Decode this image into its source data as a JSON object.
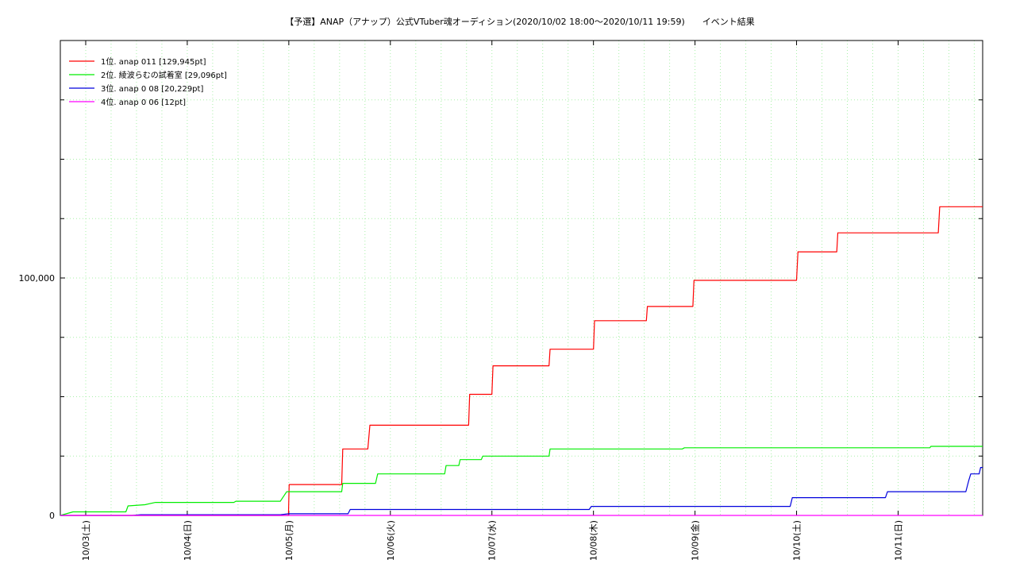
{
  "chart_data": {
    "type": "line",
    "title": "【予選】ANAP（アナップ）公式VTuber魂オーディション(2020/10/02 18:00〜2020/10/11 19:59)　　イベント結果",
    "xlabel": "",
    "ylabel": "",
    "ylim": [
      0,
      200000
    ],
    "xlim": [
      "2020-10-02 18:00",
      "2020-10-11 19:59"
    ],
    "grid": true,
    "legend_position": "top-left",
    "y_tick_labels": [
      {
        "value": 0,
        "label": "0"
      },
      {
        "value": 100000,
        "label": "100,000"
      }
    ],
    "x_tick_labels": [
      {
        "value": "2020-10-03 00:00",
        "label": "10/03(土)"
      },
      {
        "value": "2020-10-04 00:00",
        "label": "10/04(日)"
      },
      {
        "value": "2020-10-05 00:00",
        "label": "10/05(月)"
      },
      {
        "value": "2020-10-06 00:00",
        "label": "10/06(火)"
      },
      {
        "value": "2020-10-07 00:00",
        "label": "10/07(水)"
      },
      {
        "value": "2020-10-08 00:00",
        "label": "10/08(木)"
      },
      {
        "value": "2020-10-09 00:00",
        "label": "10/09(金)"
      },
      {
        "value": "2020-10-10 00:00",
        "label": "10/10(土)"
      },
      {
        "value": "2020-10-11 00:00",
        "label": "10/11(日)"
      }
    ],
    "series": [
      {
        "name": "1位. anap 011 [129,945pt]",
        "color": "#ff0000",
        "points": [
          [
            "2020-10-02 18:00",
            0
          ],
          [
            "2020-10-04 23:55",
            0
          ],
          [
            "2020-10-05 00:05",
            13000
          ],
          [
            "2020-10-05 12:30",
            13000
          ],
          [
            "2020-10-05 12:45",
            28000
          ],
          [
            "2020-10-05 18:40",
            28000
          ],
          [
            "2020-10-05 19:10",
            38000
          ],
          [
            "2020-10-06 18:30",
            38000
          ],
          [
            "2020-10-06 18:45",
            51000
          ],
          [
            "2020-10-07 00:00",
            51000
          ],
          [
            "2020-10-07 00:15",
            63000
          ],
          [
            "2020-10-07 13:30",
            63000
          ],
          [
            "2020-10-07 13:45",
            70000
          ],
          [
            "2020-10-08 00:00",
            70000
          ],
          [
            "2020-10-08 00:15",
            82000
          ],
          [
            "2020-10-08 12:30",
            82000
          ],
          [
            "2020-10-08 12:45",
            88000
          ],
          [
            "2020-10-08 23:30",
            88000
          ],
          [
            "2020-10-08 23:45",
            99000
          ],
          [
            "2020-10-10 00:00",
            99000
          ],
          [
            "2020-10-10 00:20",
            111000
          ],
          [
            "2020-10-10 09:30",
            111000
          ],
          [
            "2020-10-10 09:45",
            119000
          ],
          [
            "2020-10-11 09:30",
            119000
          ],
          [
            "2020-10-11 09:50",
            130000
          ],
          [
            "2020-10-11 19:59",
            130000
          ]
        ]
      },
      {
        "name": "2位. 綾波らむの試着室 [29,096pt]",
        "color": "#00ee00",
        "points": [
          [
            "2020-10-02 18:00",
            0
          ],
          [
            "2020-10-02 20:00",
            1000
          ],
          [
            "2020-10-02 21:00",
            1500
          ],
          [
            "2020-10-03 09:30",
            1500
          ],
          [
            "2020-10-03 10:00",
            4000
          ],
          [
            "2020-10-03 14:00",
            4500
          ],
          [
            "2020-10-03 16:30",
            5500
          ],
          [
            "2020-10-04 11:00",
            5500
          ],
          [
            "2020-10-04 11:30",
            6000
          ],
          [
            "2020-10-04 22:00",
            6000
          ],
          [
            "2020-10-04 23:30",
            10000
          ],
          [
            "2020-10-05 12:30",
            10000
          ],
          [
            "2020-10-05 12:45",
            13500
          ],
          [
            "2020-10-05 20:30",
            13500
          ],
          [
            "2020-10-05 21:00",
            17500
          ],
          [
            "2020-10-06 12:50",
            17500
          ],
          [
            "2020-10-06 13:10",
            21000
          ],
          [
            "2020-10-06 16:10",
            21000
          ],
          [
            "2020-10-06 16:30",
            23500
          ],
          [
            "2020-10-06 21:30",
            23500
          ],
          [
            "2020-10-06 21:50",
            25000
          ],
          [
            "2020-10-07 13:30",
            25000
          ],
          [
            "2020-10-07 13:45",
            28000
          ],
          [
            "2020-10-08 21:00",
            28000
          ],
          [
            "2020-10-08 21:30",
            28500
          ],
          [
            "2020-10-11 07:30",
            28500
          ],
          [
            "2020-10-11 07:45",
            29100
          ],
          [
            "2020-10-11 19:59",
            29100
          ]
        ]
      },
      {
        "name": "3位. anap 0 08 [20,229pt]",
        "color": "#0000dd",
        "points": [
          [
            "2020-10-02 18:00",
            0
          ],
          [
            "2020-10-03 11:00",
            0
          ],
          [
            "2020-10-03 13:00",
            300
          ],
          [
            "2020-10-04 22:00",
            300
          ],
          [
            "2020-10-05 00:00",
            700
          ],
          [
            "2020-10-05 14:00",
            700
          ],
          [
            "2020-10-05 14:30",
            2500
          ],
          [
            "2020-10-07 23:00",
            2500
          ],
          [
            "2020-10-07 23:30",
            3800
          ],
          [
            "2020-10-09 22:30",
            3800
          ],
          [
            "2020-10-09 23:00",
            7500
          ],
          [
            "2020-10-10 21:00",
            7500
          ],
          [
            "2020-10-10 21:30",
            10000
          ],
          [
            "2020-10-11 16:00",
            10000
          ],
          [
            "2020-10-11 16:40",
            14500
          ],
          [
            "2020-10-11 17:10",
            17500
          ],
          [
            "2020-10-11 19:10",
            17500
          ],
          [
            "2020-10-11 19:30",
            20200
          ],
          [
            "2020-10-11 19:59",
            20200
          ]
        ]
      },
      {
        "name": "4位. anap 0 06 [12pt]",
        "color": "#ff00ff",
        "points": [
          [
            "2020-10-02 18:00",
            0
          ],
          [
            "2020-10-09 20:00",
            0
          ],
          [
            "2020-10-09 20:30",
            12
          ],
          [
            "2020-10-11 19:59",
            12
          ]
        ]
      }
    ]
  }
}
